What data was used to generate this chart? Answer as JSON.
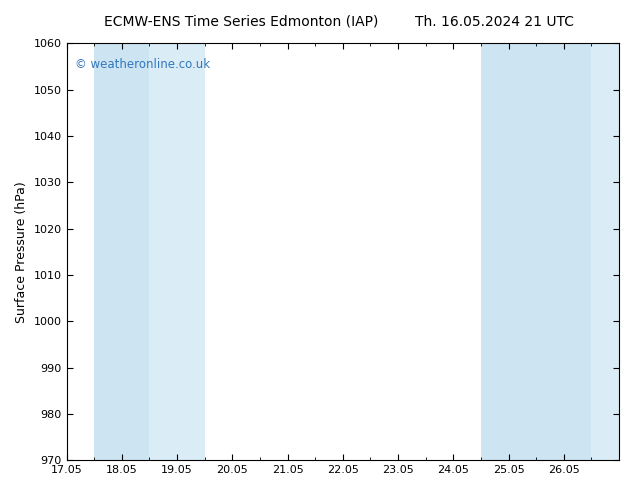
{
  "title_left": "ECMW-ENS Time Series Edmonton (IAP)",
  "title_right": "Th. 16.05.2024 21 UTC",
  "ylabel": "Surface Pressure (hPa)",
  "xlim": [
    17.05,
    27.05
  ],
  "ylim": [
    970,
    1060
  ],
  "xticks": [
    17.05,
    18.05,
    19.05,
    20.05,
    21.05,
    22.05,
    23.05,
    24.05,
    25.05,
    26.05
  ],
  "xtick_labels": [
    "17.05",
    "18.05",
    "19.05",
    "20.05",
    "21.05",
    "22.05",
    "23.05",
    "24.05",
    "25.05",
    "26.05"
  ],
  "yticks": [
    970,
    980,
    990,
    1000,
    1010,
    1020,
    1030,
    1040,
    1050,
    1060
  ],
  "background_color": "#ffffff",
  "plot_bg_color": "#ffffff",
  "shaded_bands": [
    {
      "xmin": 17.55,
      "xmax": 18.55,
      "color": "#cde4f2"
    },
    {
      "xmin": 18.55,
      "xmax": 19.55,
      "color": "#daedf7"
    },
    {
      "xmin": 24.55,
      "xmax": 25.55,
      "color": "#cde4f2"
    },
    {
      "xmin": 25.55,
      "xmax": 26.55,
      "color": "#cde4f2"
    },
    {
      "xmin": 26.55,
      "xmax": 27.05,
      "color": "#daedf7"
    }
  ],
  "shade_color_dark": "#c8dff0",
  "shade_color_light": "#daedf8",
  "watermark_text": "© weatheronline.co.uk",
  "watermark_color": "#3377bb",
  "watermark_fontsize": 8.5,
  "title_fontsize": 10,
  "tick_fontsize": 8,
  "ylabel_fontsize": 9
}
